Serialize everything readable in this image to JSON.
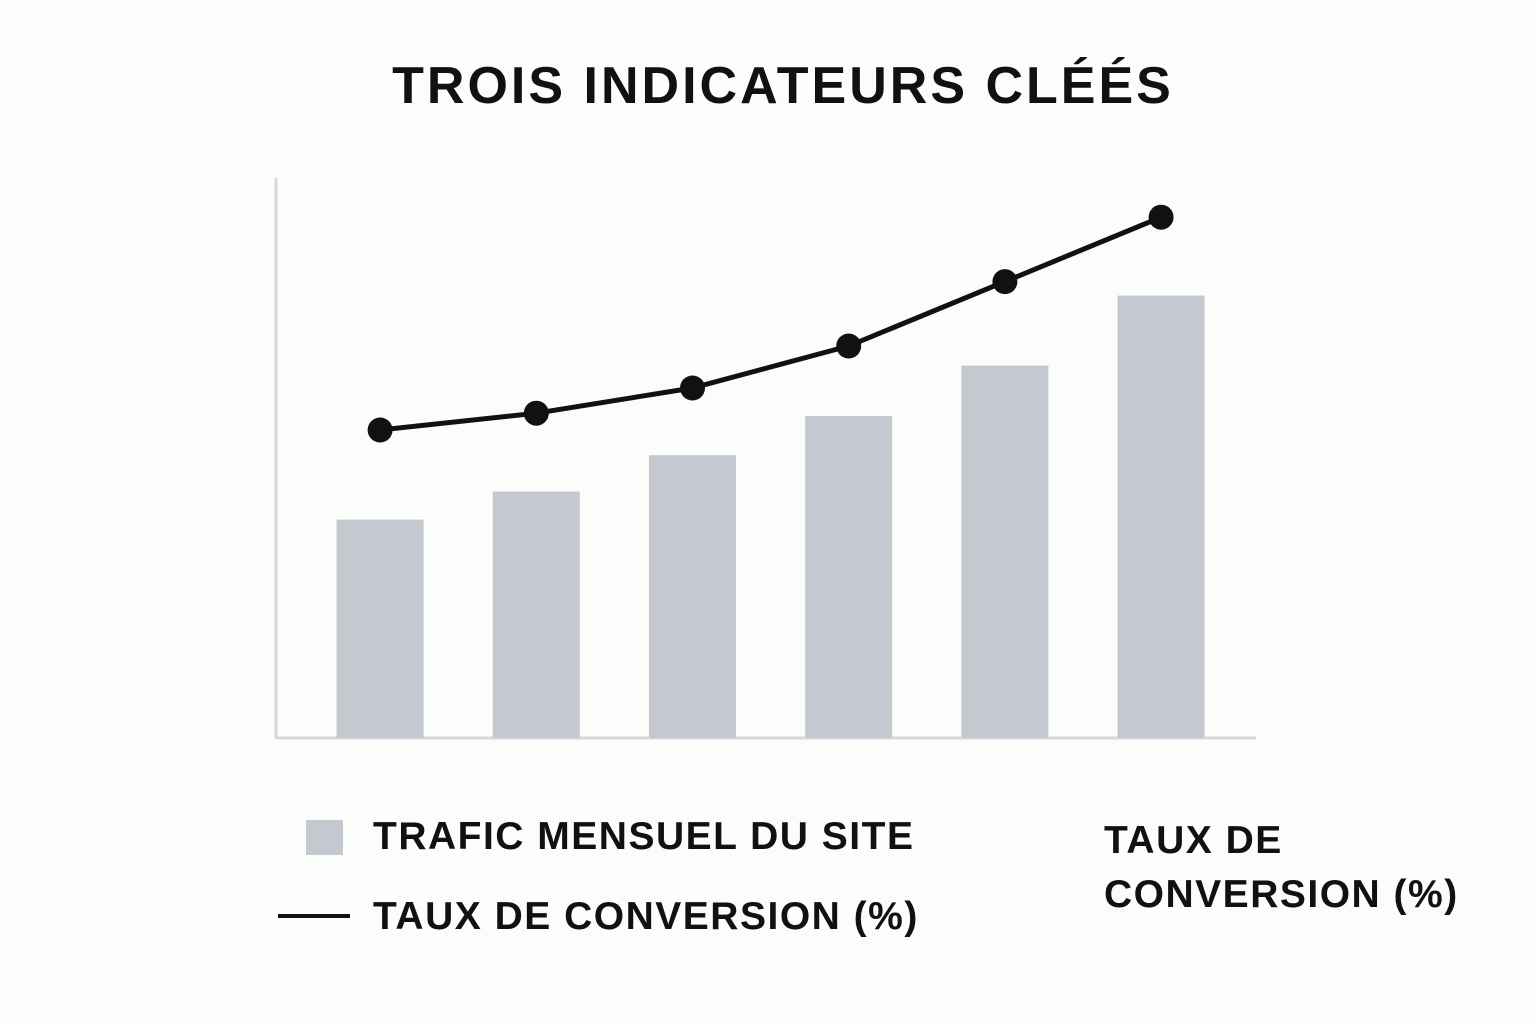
{
  "chart_data": {
    "type": "bar",
    "title": "TROIS INDICATEURS CLÉÉS",
    "categories": [
      "",
      "",
      "",
      "",
      "",
      ""
    ],
    "ylim": [
      0,
      100
    ],
    "grid": false,
    "legend_position": "bottom",
    "series": [
      {
        "name": "TRAFIC MENSUEL DU SITE",
        "type": "bar",
        "color": "#c4c9cf",
        "values": [
          39,
          44,
          50.5,
          57.5,
          66.5,
          79
        ]
      },
      {
        "name": "TAUX DE CONVERSION (%)",
        "type": "line",
        "color": "#111111",
        "values": [
          55,
          58,
          62.5,
          70,
          81.5,
          93
        ]
      }
    ],
    "annotations": [
      {
        "lines": [
          "TAUX DE",
          "CONVERSION (%)"
        ],
        "position": "bottom-right"
      }
    ]
  },
  "colors": {
    "background": "#fcfcfa",
    "axis": "#d5d8dc",
    "bar": "#c4c9cf",
    "line": "#111111"
  }
}
